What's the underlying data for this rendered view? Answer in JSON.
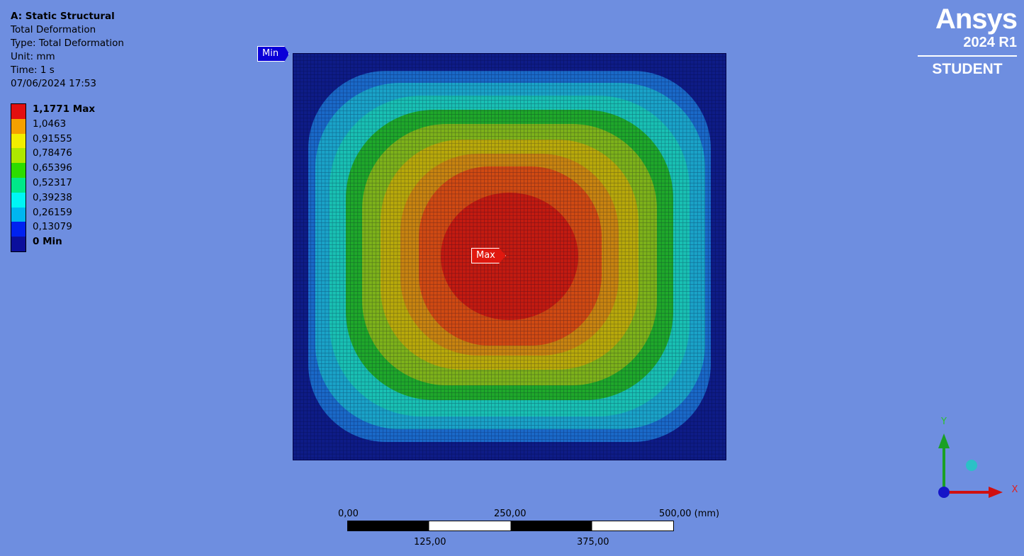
{
  "info": {
    "title": "A: Static Structural",
    "lines": [
      "Total Deformation",
      "Type: Total Deformation",
      "Unit: mm",
      "Time: 1 s",
      "07/06/2024 17:53"
    ]
  },
  "legend": [
    {
      "label": "1,1771 Max",
      "color": "#e30f0f",
      "bold": true
    },
    {
      "label": "1,0463",
      "color": "#f5a000"
    },
    {
      "label": "0,91555",
      "color": "#f2ee00"
    },
    {
      "label": "0,78476",
      "color": "#aee800"
    },
    {
      "label": "0,65396",
      "color": "#2ddc00"
    },
    {
      "label": "0,52317",
      "color": "#00e889"
    },
    {
      "label": "0,39238",
      "color": "#00f5f5"
    },
    {
      "label": "0,26159",
      "color": "#00b6f0"
    },
    {
      "label": "0,13079",
      "color": "#0022f0"
    },
    {
      "label": "0 Min",
      "color": "#0b0f9c",
      "bold": true
    }
  ],
  "probes": {
    "min": "Min",
    "max": "Max"
  },
  "logo": {
    "brand": "Ansys",
    "version": "2024 R1",
    "edition": "STUDENT"
  },
  "scale_bar": {
    "top_labels": [
      "0,00",
      "250,00",
      "500,00 (mm)"
    ],
    "bottom_labels": [
      "125,00",
      "375,00"
    ]
  },
  "triad": {
    "x_label": "X",
    "y_label": "Y"
  },
  "contour_colors": [
    "#0e1c87",
    "#1a69c8",
    "#1aa3c8",
    "#19c0b3",
    "#1fa82a",
    "#7db21a",
    "#b8a90a",
    "#c88410",
    "#d04a12",
    "#c31b10"
  ]
}
